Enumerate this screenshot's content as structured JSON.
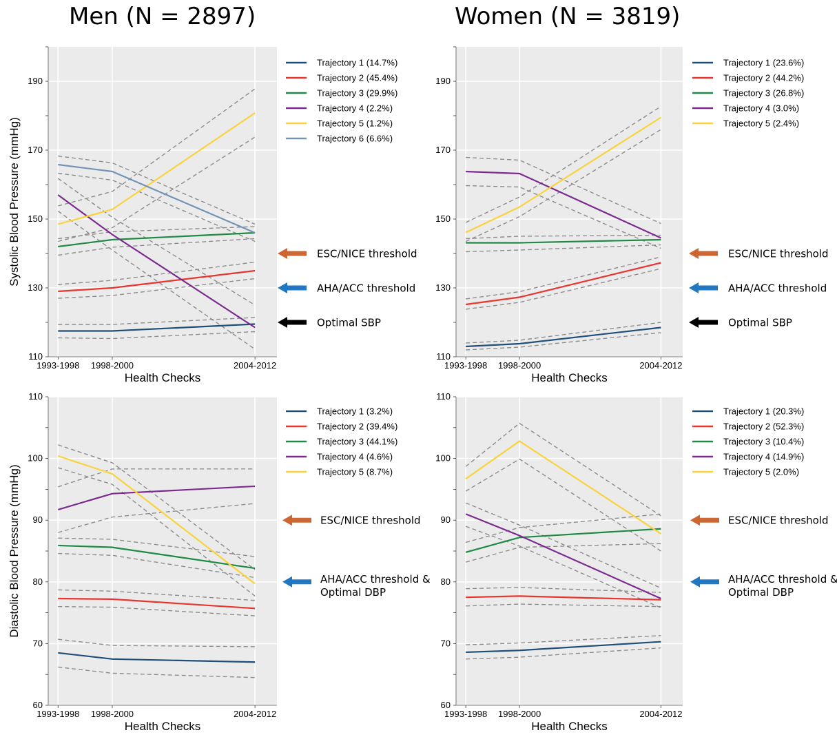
{
  "titles": {
    "men": "Men (N = 2897)",
    "women": "Women (N = 3819)"
  },
  "colors": {
    "traj1": "#1f4e79",
    "traj2": "#e8352e",
    "traj3": "#1e8a44",
    "traj4": "#7b2b8f",
    "traj5": "#f9d23c",
    "traj6": "#7393b3",
    "ci": "#8c8c8c",
    "esc_arrow": "#cc6633",
    "aha_arrow": "#1f78c1",
    "opt_arrow": "#000000",
    "panel_bg": "#ebebeb"
  },
  "chart_data": [
    {
      "id": "men_sbp",
      "type": "line",
      "xlabel": "Health Checks",
      "ylabel": "Systolic Blood Pressure (mmHg)",
      "x": [
        "1993-1998",
        "1998-2000",
        "2004-2012"
      ],
      "ylim": [
        110,
        200
      ],
      "yticks": [
        110,
        130,
        150,
        170,
        190
      ],
      "series": [
        {
          "name": "Trajectory 1 (14.7%)",
          "color": "traj1",
          "values": [
            117.5,
            117.5,
            119.5
          ],
          "lower": [
            115.5,
            115.3,
            117.3
          ],
          "upper": [
            119.4,
            119.4,
            121.4
          ]
        },
        {
          "name": "Trajectory 2 (45.4%)",
          "color": "traj2",
          "values": [
            129,
            130,
            135
          ],
          "lower": [
            127,
            127.8,
            132.7
          ],
          "upper": [
            131,
            132.2,
            137.5
          ]
        },
        {
          "name": "Trajectory 3 (29.9%)",
          "color": "traj3",
          "values": [
            142,
            144,
            146
          ],
          "lower": [
            139.5,
            141.8,
            144.3
          ],
          "upper": [
            144.3,
            146.3,
            147.8
          ]
        },
        {
          "name": "Trajectory 4 (2.2%)",
          "color": "traj4",
          "values": [
            157,
            145.5,
            118.5
          ],
          "lower": [
            152.3,
            141,
            112.2
          ],
          "upper": [
            161.8,
            150.5,
            125
          ]
        },
        {
          "name": "Trajectory 5 (1.2%)",
          "color": "traj5",
          "values": [
            148.5,
            152.8,
            180.8
          ],
          "lower": [
            143.5,
            147.5,
            173.8
          ],
          "upper": [
            153.8,
            158,
            187.8
          ]
        },
        {
          "name": "Trajectory 6 (6.6%)",
          "color": "traj6",
          "values": [
            165.8,
            163.8,
            146
          ],
          "lower": [
            163.3,
            161.3,
            143.5
          ],
          "upper": [
            168.3,
            166.3,
            148.5
          ]
        }
      ],
      "thresholds": [
        {
          "label": "ESC/NICE threshold",
          "value": 140,
          "arrow": "esc_arrow"
        },
        {
          "label": "AHA/ACC threshold",
          "value": 130,
          "arrow": "aha_arrow"
        },
        {
          "label": "Optimal SBP",
          "value": 120,
          "arrow": "opt_arrow"
        }
      ]
    },
    {
      "id": "women_sbp",
      "type": "line",
      "xlabel": "Health Checks",
      "ylabel": "",
      "x": [
        "1993-1998",
        "1998-2000",
        "2004-2012"
      ],
      "ylim": [
        110,
        200
      ],
      "yticks": [
        110,
        130,
        150,
        170,
        190
      ],
      "series": [
        {
          "name": "Trajectory 1 (23.6%)",
          "color": "traj1",
          "values": [
            113,
            113.8,
            118.5
          ],
          "lower": [
            112,
            112.8,
            117
          ],
          "upper": [
            114,
            114.8,
            120
          ]
        },
        {
          "name": "Trajectory 2 (44.2%)",
          "color": "traj2",
          "values": [
            125.2,
            127.3,
            137.3
          ],
          "lower": [
            123.8,
            125.8,
            135.6
          ],
          "upper": [
            126.8,
            128.9,
            139
          ]
        },
        {
          "name": "Trajectory 3 (26.8%)",
          "color": "traj3",
          "values": [
            143.1,
            143.1,
            144
          ],
          "lower": [
            140.5,
            141,
            142.5
          ],
          "upper": [
            144.3,
            145,
            145.3
          ]
        },
        {
          "name": "Trajectory 4 (3.0%)",
          "color": "traj4",
          "values": [
            163.8,
            163.2,
            144.5
          ],
          "lower": [
            159.7,
            159.3,
            141.5
          ],
          "upper": [
            167.9,
            167.1,
            148.7
          ]
        },
        {
          "name": "Trajectory 5 (2.4%)",
          "color": "traj5",
          "values": [
            146.1,
            153.5,
            179.5
          ],
          "lower": [
            143.5,
            150.7,
            176
          ],
          "upper": [
            149,
            156.4,
            182.7
          ]
        }
      ],
      "thresholds": [
        {
          "label": "ESC/NICE threshold",
          "value": 140,
          "arrow": "esc_arrow"
        },
        {
          "label": "AHA/ACC threshold",
          "value": 130,
          "arrow": "aha_arrow"
        },
        {
          "label": "Optimal SBP",
          "value": 120,
          "arrow": "opt_arrow"
        }
      ]
    },
    {
      "id": "men_dbp",
      "type": "line",
      "xlabel": "Health Checks",
      "ylabel": "Diastolic Blood Pressure (mmHg)",
      "x": [
        "1993-1998",
        "1998-2000",
        "2004-2012"
      ],
      "ylim": [
        60,
        110
      ],
      "yticks": [
        60,
        70,
        80,
        90,
        100,
        110
      ],
      "series": [
        {
          "name": "Trajectory 1 (3.2%)",
          "color": "traj1",
          "values": [
            68.5,
            67.5,
            67
          ],
          "lower": [
            66.2,
            65.2,
            64.5
          ],
          "upper": [
            70.7,
            69.7,
            69.5
          ]
        },
        {
          "name": "Trajectory 2 (39.4%)",
          "color": "traj2",
          "values": [
            77.3,
            77.2,
            75.7
          ],
          "lower": [
            76,
            75.9,
            74.5
          ],
          "upper": [
            78.7,
            78.5,
            77
          ]
        },
        {
          "name": "Trajectory 3 (44.1%)",
          "color": "traj3",
          "values": [
            85.9,
            85.6,
            82.2
          ],
          "lower": [
            84.6,
            84.3,
            80.7
          ],
          "upper": [
            87.1,
            86.9,
            84.1
          ]
        },
        {
          "name": "Trajectory 4 (4.6%)",
          "color": "traj4",
          "values": [
            91.7,
            94.3,
            95.5
          ],
          "lower": [
            88,
            90.5,
            92.7
          ],
          "upper": [
            95.4,
            98.3,
            98.3
          ]
        },
        {
          "name": "Trajectory 5 (8.7%)",
          "color": "traj5",
          "values": [
            100.4,
            97.5,
            79.7
          ],
          "lower": [
            98.5,
            95.8,
            77.7
          ],
          "upper": [
            102.2,
            99.3,
            82
          ]
        }
      ],
      "thresholds": [
        {
          "label": "ESC/NICE threshold",
          "value": 90,
          "arrow": "esc_arrow"
        },
        {
          "label": "AHA/ACC threshold &",
          "label2": "Optimal DBP",
          "value": 80,
          "arrow": "aha_arrow"
        }
      ]
    },
    {
      "id": "women_dbp",
      "type": "line",
      "xlabel": "Health Checks",
      "ylabel": "",
      "x": [
        "1993-1998",
        "1998-2000",
        "2004-2012"
      ],
      "ylim": [
        60,
        110
      ],
      "yticks": [
        60,
        70,
        80,
        90,
        100,
        110
      ],
      "series": [
        {
          "name": "Trajectory 1 (20.3%)",
          "color": "traj1",
          "values": [
            68.6,
            68.9,
            70.3
          ],
          "lower": [
            67.5,
            67.8,
            69.3
          ],
          "upper": [
            69.8,
            70.1,
            71.3
          ]
        },
        {
          "name": "Trajectory 2 (52.3%)",
          "color": "traj2",
          "values": [
            77.5,
            77.7,
            77.1
          ],
          "lower": [
            76.1,
            76.4,
            76
          ],
          "upper": [
            78.9,
            79.1,
            78.3
          ]
        },
        {
          "name": "Trajectory 3 (10.4%)",
          "color": "traj3",
          "values": [
            84.8,
            87.2,
            88.6
          ],
          "lower": [
            83.2,
            85.6,
            86.2
          ],
          "upper": [
            86.4,
            88.8,
            91
          ]
        },
        {
          "name": "Trajectory 4 (14.9%)",
          "color": "traj4",
          "values": [
            91,
            87.5,
            77.3
          ],
          "lower": [
            89,
            85.8,
            75.8
          ],
          "upper": [
            92.8,
            89.2,
            79
          ]
        },
        {
          "name": "Trajectory 5 (2.0%)",
          "color": "traj5",
          "values": [
            96.7,
            102.8,
            87.8
          ],
          "lower": [
            94.7,
            99.9,
            85
          ],
          "upper": [
            98.7,
            105.7,
            90.7
          ]
        }
      ],
      "thresholds": [
        {
          "label": "ESC/NICE threshold",
          "value": 90,
          "arrow": "esc_arrow"
        },
        {
          "label": "AHA/ACC threshold &",
          "label2": "Optimal DBP",
          "value": 80,
          "arrow": "aha_arrow"
        }
      ]
    }
  ]
}
